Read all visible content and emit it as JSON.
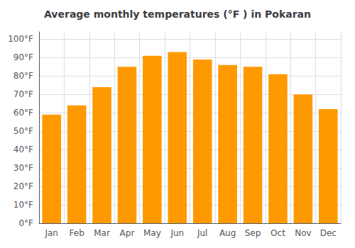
{
  "chart_data": {
    "type": "bar",
    "title": "Average monthly temperatures (°F ) in Pokaran",
    "categories": [
      "Jan",
      "Feb",
      "Mar",
      "Apr",
      "May",
      "Jun",
      "Jul",
      "Aug",
      "Sep",
      "Oct",
      "Nov",
      "Dec"
    ],
    "values": [
      59,
      64,
      74,
      85,
      91,
      93,
      89,
      86,
      85,
      81,
      70,
      62
    ],
    "color": "#FF9900",
    "ylim": [
      0,
      104
    ],
    "yticks": [
      {
        "value": 0,
        "label": "0°F"
      },
      {
        "value": 10,
        "label": "10°F"
      },
      {
        "value": 20,
        "label": "20°F"
      },
      {
        "value": 30,
        "label": "30°F"
      },
      {
        "value": 40,
        "label": "40°F"
      },
      {
        "value": 50,
        "label": "50°F"
      },
      {
        "value": 60,
        "label": "60°F"
      },
      {
        "value": 70,
        "label": "70°F"
      },
      {
        "value": 80,
        "label": "80°F"
      },
      {
        "value": 90,
        "label": "90°F"
      },
      {
        "value": 100,
        "label": "100°F"
      }
    ],
    "grid": true
  }
}
